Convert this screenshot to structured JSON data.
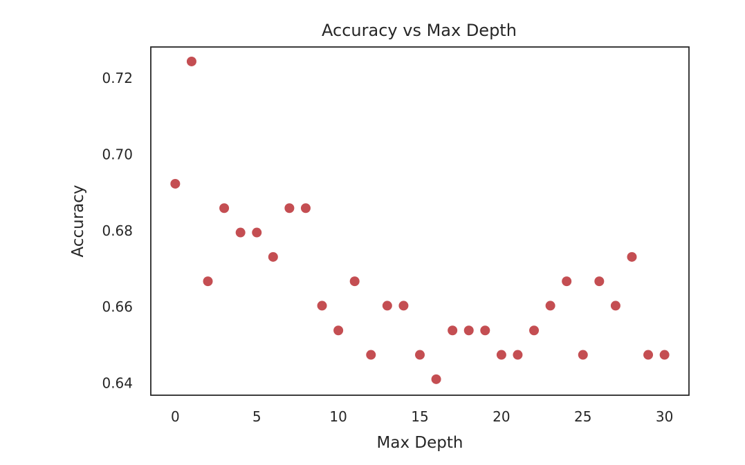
{
  "chart_data": {
    "type": "scatter",
    "title": "Accuracy vs Max Depth",
    "xlabel": "Max Depth",
    "ylabel": "Accuracy",
    "xlim": [
      -1.5,
      31.5
    ],
    "ylim": [
      0.6368,
      0.7282
    ],
    "xticks": [
      0,
      5,
      10,
      15,
      20,
      25,
      30
    ],
    "xtick_labels": [
      "0",
      "5",
      "10",
      "15",
      "20",
      "25",
      "30"
    ],
    "yticks": [
      0.64,
      0.66,
      0.68,
      0.7,
      0.72
    ],
    "ytick_labels": [
      "0.64",
      "0.66",
      "0.68",
      "0.70",
      "0.72"
    ],
    "grid": false,
    "legend": "none",
    "marker_color": "#c44e52",
    "series": [
      {
        "x": [
          0,
          1,
          2,
          3,
          4,
          5,
          6,
          7,
          8,
          9,
          10,
          11,
          12,
          13,
          14,
          15,
          16,
          17,
          18,
          19,
          20,
          21,
          22,
          23,
          24,
          25,
          26,
          27,
          28,
          29,
          30
        ],
        "y": [
          0.6923,
          0.7244,
          0.6667,
          0.6859,
          0.6795,
          0.6795,
          0.6731,
          0.6859,
          0.6859,
          0.6603,
          0.6538,
          0.6667,
          0.6474,
          0.6603,
          0.6603,
          0.6474,
          0.641,
          0.6538,
          0.6538,
          0.6538,
          0.6474,
          0.6474,
          0.6538,
          0.6603,
          0.6667,
          0.6474,
          0.6667,
          0.6603,
          0.6731,
          0.6474,
          0.6474
        ]
      }
    ]
  }
}
